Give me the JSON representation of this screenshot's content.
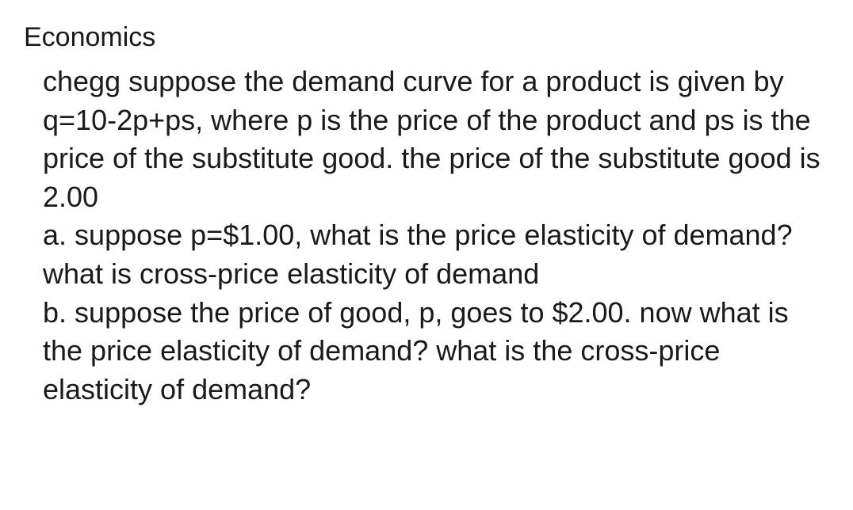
{
  "subject": "Economics",
  "question": {
    "intro": "chegg suppose the demand curve for a product is given by q=10-2p+ps, where p is the price of the product and ps is the price of the substitute good. the price of the substitute good is 2.00",
    "parts": [
      {
        "label": "a.",
        "text": "suppose p=$1.00, what is the price elasticity of demand? what is cross-price elasticity of demand"
      },
      {
        "label": "b.",
        "text": "suppose the price of good, p, goes to $2.00. now what is the price elasticity of demand? what is the cross-price elasticity of demand?"
      }
    ]
  },
  "colors": {
    "background": "#ffffff",
    "text": "#1a1a1a"
  },
  "typography": {
    "heading_fontsize": 34,
    "body_fontsize": 36,
    "line_height": 1.35,
    "font_weight": 400
  }
}
